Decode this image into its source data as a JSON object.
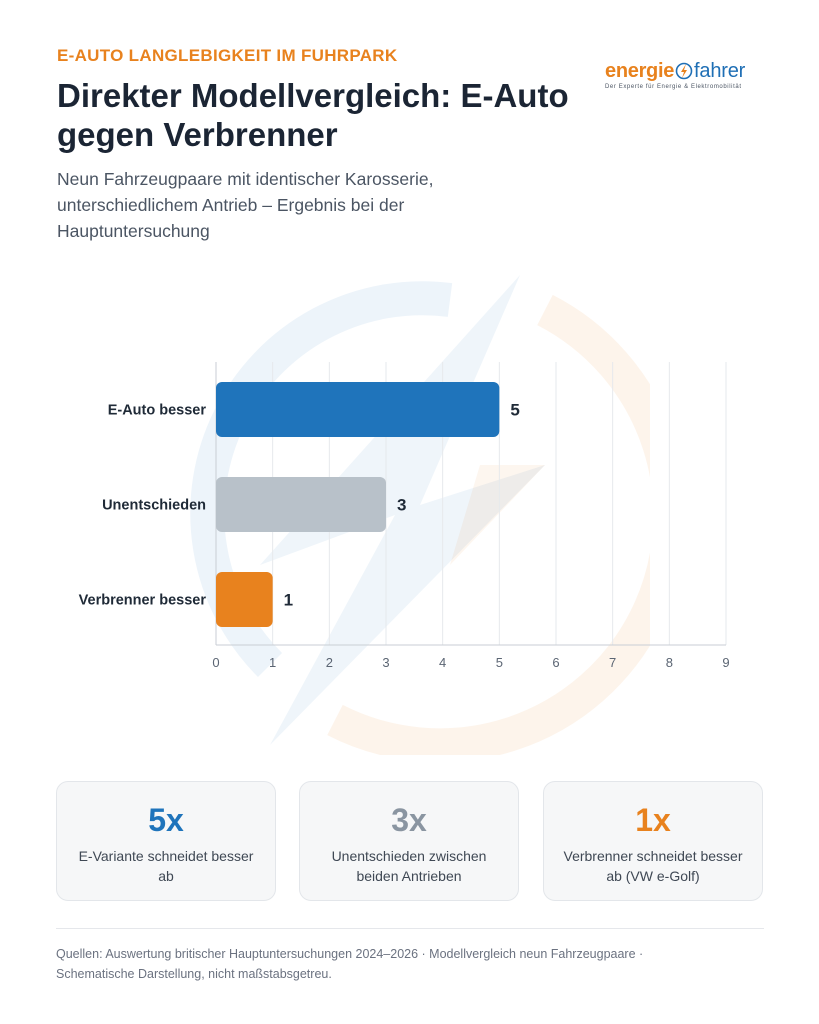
{
  "header": {
    "kicker": "E-AUTO LANGLEBIGKEIT IM FUHRPARK",
    "title": "Direkter Modellvergleich: E-Auto gegen Verbrenner",
    "subtitle": "Neun Fahrzeugpaare mit identischer Karosserie, unterschiedlichem Antrieb – Ergebnis bei der Hauptuntersuchung"
  },
  "logo": {
    "part1": "energie",
    "part2": "fahrer",
    "tagline": "Der Experte für Energie & Elektromobilität",
    "colors": {
      "orange": "#e8821e",
      "blue": "#1f6fb5"
    }
  },
  "chart_data": {
    "type": "bar",
    "orientation": "horizontal",
    "categories": [
      "E-Auto besser",
      "Unentschieden",
      "Verbrenner besser"
    ],
    "values": [
      5,
      3,
      1
    ],
    "colors": [
      "#1f74bb",
      "#b8c1c9",
      "#e8821e"
    ],
    "xlim": [
      0,
      9
    ],
    "xticks": [
      0,
      1,
      2,
      3,
      4,
      5,
      6,
      7,
      8,
      9
    ],
    "grid": true,
    "legend": false
  },
  "cards": [
    {
      "value": "5x",
      "text": "E-Variante schneidet besser ab",
      "color": "#1f74bb"
    },
    {
      "value": "3x",
      "text": "Unentschieden zwischen beiden Antrieben",
      "color": "#8a95a1"
    },
    {
      "value": "1x",
      "text": "Verbrenner schneidet besser ab (VW e-Golf)",
      "color": "#e8821e"
    }
  ],
  "footer": {
    "line1": "Quellen: Auswertung britischer Hauptuntersuchungen 2024–2026 · Modellvergleich neun Fahrzeugpaare ·",
    "line2": "Schematische Darstellung, nicht maßstabsgetreu."
  }
}
